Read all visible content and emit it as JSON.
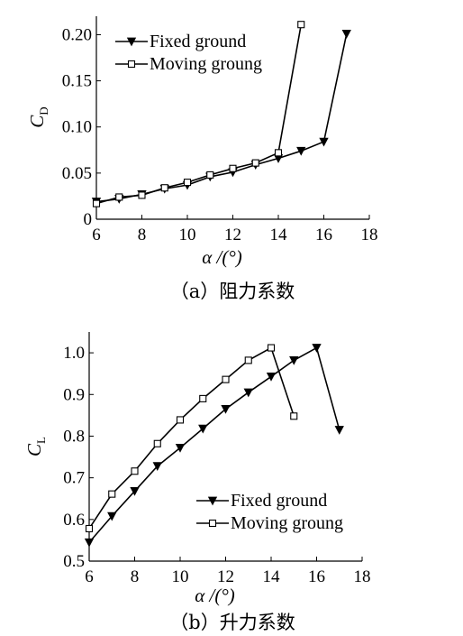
{
  "chart_data": [
    {
      "type": "line",
      "ylabel_main": "C",
      "ylabel_sub": "D",
      "xlabel": "α /(°)",
      "caption": "（a）阻力系数",
      "xlim": [
        6,
        18
      ],
      "ylim": [
        0,
        0.22
      ],
      "xticks": [
        6,
        8,
        10,
        12,
        14,
        16,
        18
      ],
      "xtick_labels": [
        "6",
        "8",
        "10",
        "12",
        "14",
        "16",
        "18"
      ],
      "yticks": [
        0,
        0.05,
        0.1,
        0.15,
        0.2
      ],
      "ytick_labels": [
        "0",
        "0.05",
        "0.10",
        "0.15",
        "0.20"
      ],
      "legend_position": "top-left",
      "grid": false,
      "series": [
        {
          "name": "Fixed ground",
          "marker": "triangle-down",
          "x": [
            6,
            7,
            8,
            9,
            10,
            11,
            12,
            13,
            14,
            15,
            16,
            17
          ],
          "y": [
            0.019,
            0.022,
            0.027,
            0.033,
            0.037,
            0.046,
            0.051,
            0.059,
            0.066,
            0.074,
            0.084,
            0.201
          ]
        },
        {
          "name": "Moving groung",
          "marker": "square",
          "x": [
            6,
            7,
            8,
            9,
            10,
            11,
            12,
            13,
            14,
            15
          ],
          "y": [
            0.017,
            0.024,
            0.026,
            0.034,
            0.04,
            0.048,
            0.055,
            0.061,
            0.072,
            0.211
          ]
        }
      ]
    },
    {
      "type": "line",
      "ylabel_main": "C",
      "ylabel_sub": "L",
      "xlabel": "α /(°)",
      "caption": "（b）升力系数",
      "xlim": [
        6,
        18
      ],
      "ylim": [
        0.5,
        1.05
      ],
      "xticks": [
        6,
        8,
        10,
        12,
        14,
        16,
        18
      ],
      "xtick_labels": [
        "6",
        "8",
        "10",
        "12",
        "14",
        "16",
        "18"
      ],
      "yticks": [
        0.5,
        0.6,
        0.7,
        0.8,
        0.9,
        1.0
      ],
      "ytick_labels": [
        "0.5",
        "0.6",
        "0.7",
        "0.8",
        "0.9",
        "1.0"
      ],
      "legend_position": "bottom-right",
      "grid": false,
      "series": [
        {
          "name": "Fixed ground",
          "marker": "triangle-down",
          "x": [
            6,
            7,
            8,
            9,
            10,
            11,
            12,
            13,
            14,
            15,
            16,
            17
          ],
          "y": [
            0.545,
            0.608,
            0.668,
            0.728,
            0.772,
            0.818,
            0.865,
            0.905,
            0.943,
            0.982,
            1.012,
            0.815
          ]
        },
        {
          "name": "Moving groung",
          "marker": "square",
          "x": [
            6,
            7,
            8,
            9,
            10,
            11,
            12,
            13,
            14,
            15
          ],
          "y": [
            0.578,
            0.661,
            0.716,
            0.782,
            0.839,
            0.89,
            0.936,
            0.982,
            1.012,
            0.848
          ]
        }
      ]
    }
  ]
}
